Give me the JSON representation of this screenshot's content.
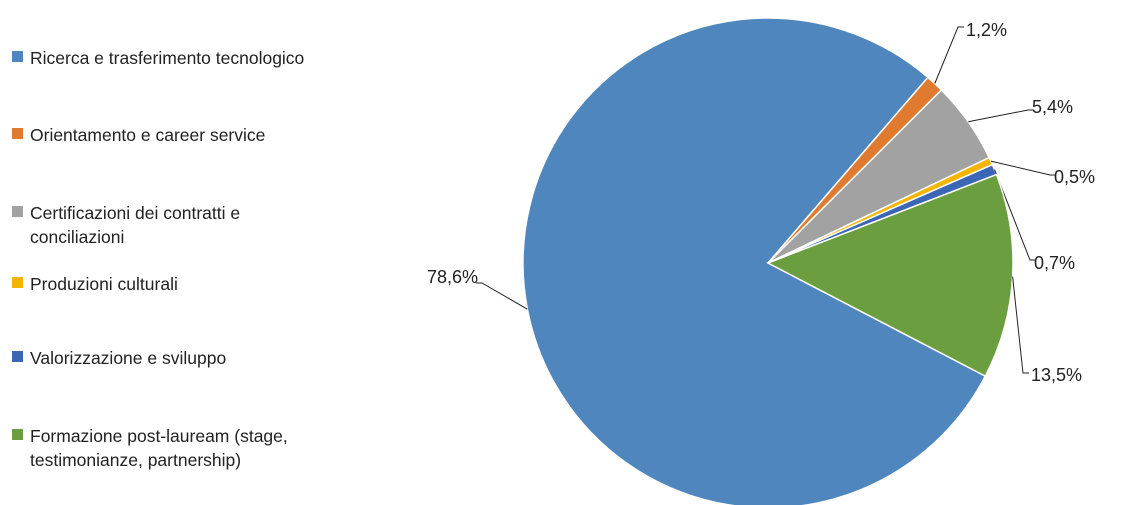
{
  "chart_data": {
    "type": "pie",
    "series": [
      {
        "name": "Ricerca e trasferimento tecnologico",
        "value": 78.6,
        "label": "78,6%",
        "color": "#4f86bd"
      },
      {
        "name": "Orientamento e career service",
        "value": 1.2,
        "label": "1,2%",
        "color": "#e07a2e"
      },
      {
        "name": "Certificazioni dei contratti e conciliazioni",
        "value": 5.4,
        "label": "5,4%",
        "color": "#a2a2a2"
      },
      {
        "name": "Produzioni culturali",
        "value": 0.5,
        "label": "0,5%",
        "color": "#f5b400"
      },
      {
        "name": "Valorizzazione e sviluppo",
        "value": 0.7,
        "label": "0,7%",
        "color": "#3a66b5"
      },
      {
        "name": "Formazione post-lauream (stage, testimonianze, partnership)",
        "value": 13.5,
        "label": "13,5%",
        "color": "#6a9e3e"
      }
    ],
    "legend_position": "left"
  },
  "legend": [
    {
      "line1": "Ricerca e trasferimento tecnologico",
      "line2": ""
    },
    {
      "line1": "Orientamento e career service",
      "line2": ""
    },
    {
      "line1": "Certificazioni dei contratti e",
      "line2": "conciliazioni"
    },
    {
      "line1": "Produzioni culturali",
      "line2": ""
    },
    {
      "line1": "Valorizzazione e sviluppo",
      "line2": ""
    },
    {
      "line1": "Formazione post-lauream (stage,",
      "line2": "testimonianze, partnership)"
    }
  ]
}
